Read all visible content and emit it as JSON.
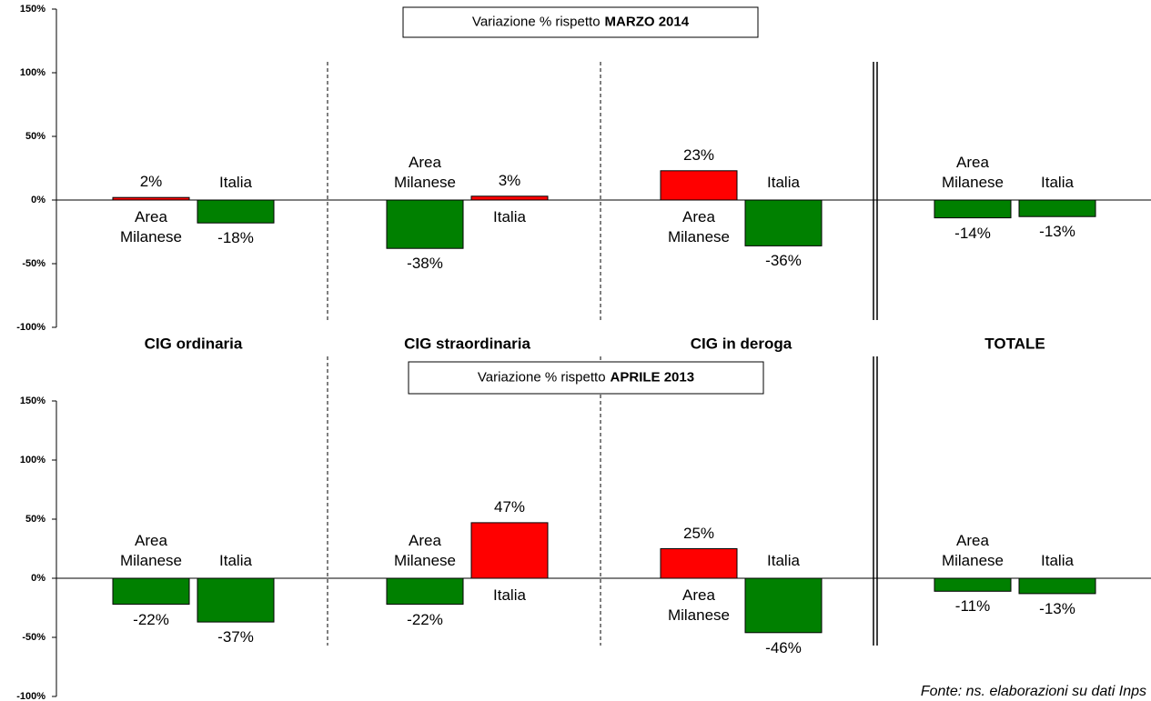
{
  "categories": [
    "CIG ordinaria",
    "CIG straordinaria",
    "CIG in deroga",
    "TOTALE"
  ],
  "source": "Fonte: ns. elaborazioni su dati Inps",
  "chart_data": [
    {
      "type": "bar",
      "title": "Variazione % rispetto",
      "title_bold": "MARZO 2014",
      "positive_color": "#ff0000",
      "negative_color": "#008000",
      "ylim": [
        -100,
        150
      ],
      "yticks": [
        {
          "value": -100,
          "label": "-100%"
        },
        {
          "value": -50,
          "label": "-50%"
        },
        {
          "value": 0,
          "label": "0%"
        },
        {
          "value": 50,
          "label": "50%"
        },
        {
          "value": 100,
          "label": "100%"
        },
        {
          "value": 150,
          "label": "150%"
        }
      ],
      "series": [
        {
          "name": "Area Milanese",
          "values": [
            2,
            -38,
            23,
            -14
          ],
          "value_labels": [
            "2%",
            "-38%",
            "23%",
            "-14%"
          ]
        },
        {
          "name": "Italia",
          "values": [
            -18,
            3,
            -36,
            -13
          ],
          "value_labels": [
            "-18%",
            "3%",
            "-36%",
            "-13%"
          ]
        }
      ]
    },
    {
      "type": "bar",
      "title": "Variazione % rispetto",
      "title_bold": "APRILE 2013",
      "positive_color": "#ff0000",
      "negative_color": "#008000",
      "ylim": [
        -100,
        150
      ],
      "yticks": [
        {
          "value": -100,
          "label": "-100%"
        },
        {
          "value": -50,
          "label": "-50%"
        },
        {
          "value": 0,
          "label": "0%"
        },
        {
          "value": 50,
          "label": "50%"
        },
        {
          "value": 100,
          "label": "100%"
        },
        {
          "value": 150,
          "label": "150%"
        }
      ],
      "series": [
        {
          "name": "Area Milanese",
          "values": [
            -22,
            -22,
            25,
            -11
          ],
          "value_labels": [
            "-22%",
            "-22%",
            "25%",
            "-11%"
          ]
        },
        {
          "name": "Italia",
          "values": [
            -37,
            47,
            -46,
            -13
          ],
          "value_labels": [
            "-37%",
            "47%",
            "-46%",
            "-13%"
          ]
        }
      ]
    }
  ]
}
